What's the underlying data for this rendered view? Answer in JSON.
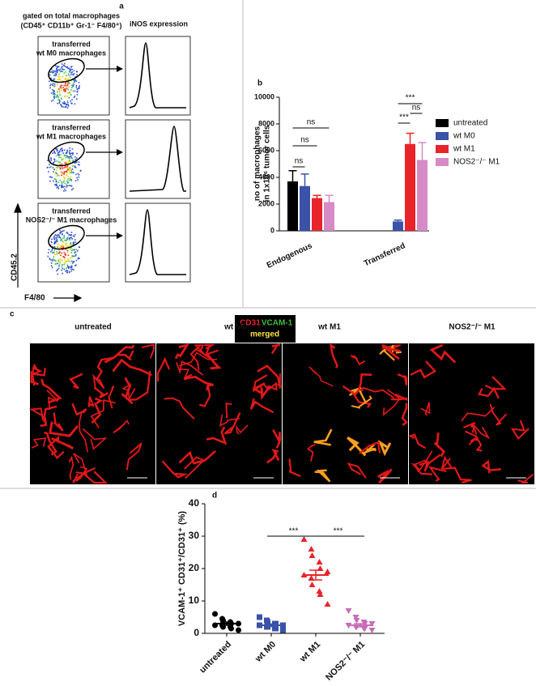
{
  "panel_labels": [
    "a",
    "b",
    "c",
    "d"
  ],
  "panel_a": {
    "gate_title": "gated on total macrophages",
    "gate_subtitle": "(CD45⁺ CD11b⁺ Gr-1⁻ F4/80⁺)",
    "histogram_title": "iNOS expression",
    "samples": [
      [
        "transferred",
        "wt M0 macrophages"
      ],
      [
        "transferred",
        "wt M1 macrophages"
      ],
      [
        "transferred",
        "NOS2⁻/⁻ M1 macrophages"
      ]
    ],
    "y_axis": "CD45.2",
    "x_axis": "F4/80"
  },
  "panel_c": {
    "columns": [
      "untreated",
      "wt M0",
      "wt M1",
      "NOS2⁻/⁻ M1"
    ],
    "stain_red": "CD31",
    "stain_green": "VCAM-1",
    "stain_merged": "merged"
  },
  "chart_data": [
    {
      "type": "bar",
      "ylabel": [
        "no of macrophages",
        "in 1x10⁶ tumor cells"
      ],
      "categories": [
        "Endogenous",
        "Transferred"
      ],
      "series": [
        {
          "name": "untreated",
          "color": "#000000",
          "values": [
            3700,
            null
          ],
          "errors": [
            800,
            null
          ]
        },
        {
          "name": "wt M0",
          "color": "#3a52a8",
          "values": [
            3350,
            700
          ],
          "errors": [
            900,
            100
          ]
        },
        {
          "name": "wt M1",
          "color": "#e8232a",
          "values": [
            2450,
            6500
          ],
          "errors": [
            200,
            800
          ]
        },
        {
          "name": "NOS2⁻/⁻ M1",
          "color": "#d68ac6",
          "values": [
            2150,
            5300
          ],
          "errors": [
            500,
            1300
          ]
        }
      ],
      "ylim": [
        0,
        10000
      ],
      "yticks": [
        0,
        2000,
        4000,
        6000,
        8000,
        10000
      ],
      "legend": "right",
      "annotations": [
        "ns",
        "ns",
        "ns",
        "***",
        "ns",
        "***"
      ]
    },
    {
      "type": "dot",
      "ylabel": "VCAM-1⁺ CD31⁺/CD31⁺ (%)",
      "categories": [
        "untreated",
        "wt M0",
        "wt M1",
        "NOS2⁻/⁻ M1"
      ],
      "colors": [
        "#000000",
        "#3a52a8",
        "#e8232a",
        "#c86cb8"
      ],
      "points": [
        [
          6,
          4.5,
          4,
          3.5,
          3,
          3,
          2.5,
          2.5,
          2,
          2,
          1.5,
          1
        ],
        [
          5,
          4,
          3.5,
          3,
          3,
          2.5,
          2.5,
          2,
          2,
          1.5,
          1.5,
          1
        ],
        [
          29,
          26,
          24,
          22,
          20,
          19,
          18,
          17,
          15,
          13,
          12,
          9
        ],
        [
          7,
          5,
          4,
          3.5,
          3,
          3,
          2.5,
          2,
          2,
          1.5,
          1.5,
          1
        ]
      ],
      "means": [
        3,
        2.5,
        18,
        2.5
      ],
      "sems": [
        0.5,
        0.4,
        1.5,
        0.5
      ],
      "ylim": [
        0,
        40
      ],
      "yticks": [
        0,
        10,
        20,
        30,
        40
      ],
      "annotations": [
        "***",
        "***"
      ]
    }
  ]
}
